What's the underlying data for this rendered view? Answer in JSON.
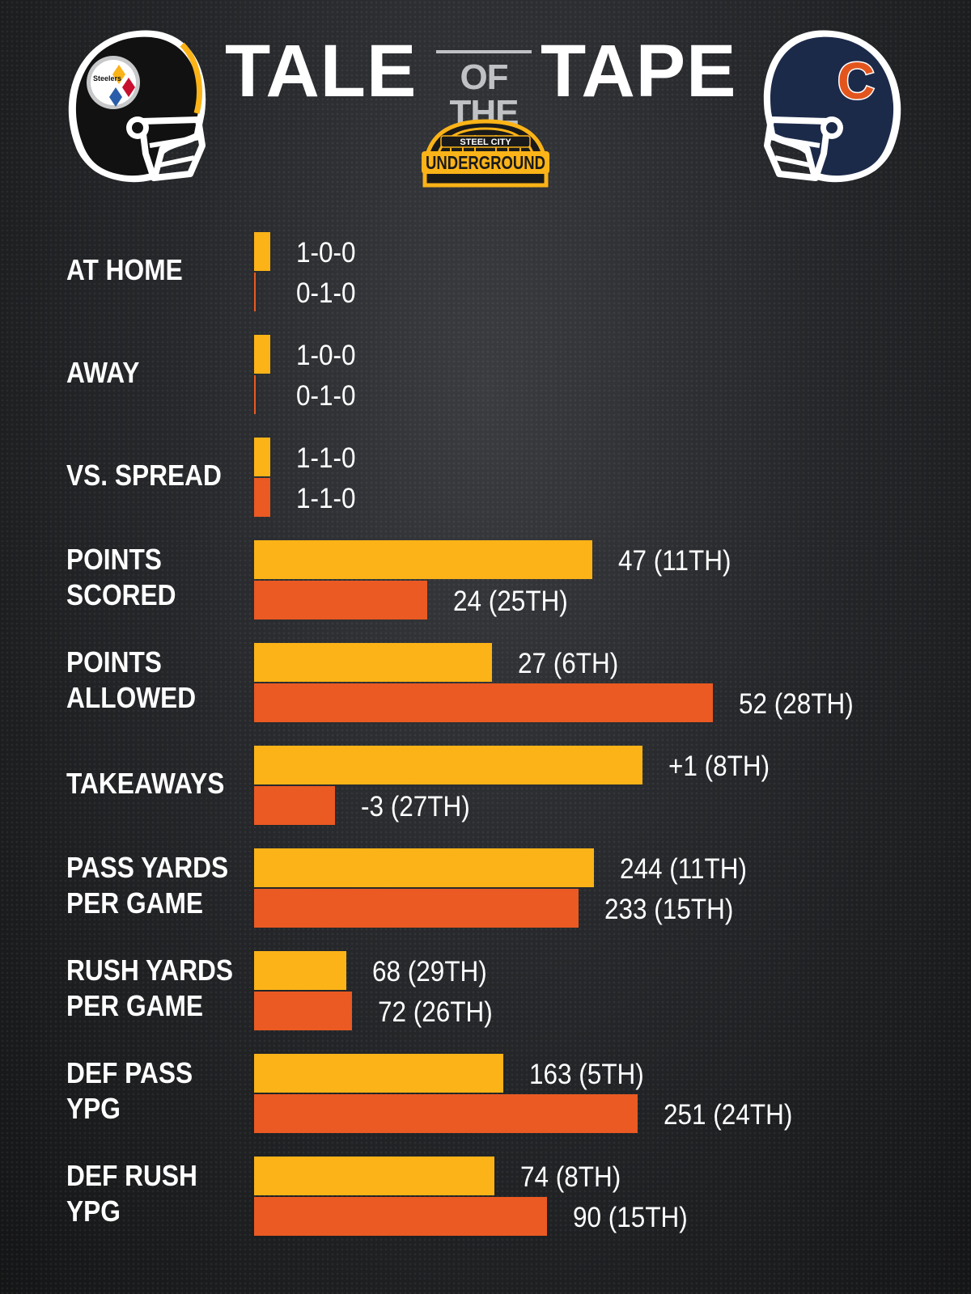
{
  "header": {
    "title_left": "TALE",
    "title_mid": "OF THE",
    "title_right": "TAPE",
    "logo_line1": "STEEL CITY",
    "logo_line2": "UNDERGROUND",
    "helmet_left_text": "Steelers",
    "helmet_right_text": "C"
  },
  "colors": {
    "team_a": "#fbb317",
    "team_b": "#ea5a22",
    "steelers_helmet": "#111111",
    "bears_helmet": "#1c2a4a"
  },
  "chart_data": {
    "type": "bar",
    "orientation": "horizontal",
    "categories": [
      [
        "AT HOME"
      ],
      [
        "AWAY"
      ],
      [
        "VS. SPREAD"
      ],
      [
        "POINTS",
        "SCORED"
      ],
      [
        "POINTS",
        "ALLOWED"
      ],
      [
        "TAKEAWAYS"
      ],
      [
        "PASS YARDS",
        "PER GAME"
      ],
      [
        "RUSH YARDS",
        "PER GAME"
      ],
      [
        "DEF PASS",
        "YPG"
      ],
      [
        "DEF RUSH",
        "YPG"
      ]
    ],
    "series": [
      {
        "values": [
          1,
          1,
          1,
          47,
          27,
          1,
          244,
          68,
          163,
          74
        ],
        "labels": [
          "1-0-0",
          "1-0-0",
          "1-1-0",
          "47 (11TH)",
          "27 (6TH)",
          "+1 (8TH)",
          "244 (11TH)",
          "68 (29TH)",
          "163 (5TH)",
          "74 (8TH)"
        ]
      },
      {
        "values": [
          0,
          0,
          1,
          24,
          52,
          -3,
          233,
          72,
          251,
          90
        ],
        "labels": [
          "0-1-0",
          "0-1-0",
          "1-1-0",
          "24 (25TH)",
          "52 (28TH)",
          "-3 (27TH)",
          "233 (15TH)",
          "72 (26TH)",
          "251 (24TH)",
          "90 (15TH)"
        ]
      }
    ],
    "title": "",
    "xlabel": "",
    "ylabel": "",
    "legend": "none",
    "grid": false
  }
}
